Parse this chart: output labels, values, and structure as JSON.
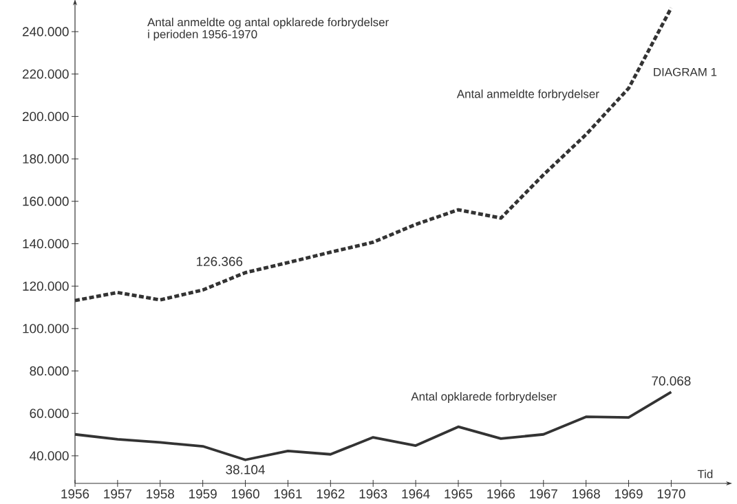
{
  "chart_data": {
    "type": "line",
    "title": "Antal anmeldte og antal opklarede forbrydelser",
    "subtitle": "i perioden 1956-1970",
    "xlabel": "Tid",
    "annotations": [
      "DIAGRAM 1"
    ],
    "categories": [
      "1956",
      "1957",
      "1958",
      "1959",
      "1960",
      "1961",
      "1962",
      "1963",
      "1964",
      "1965",
      "1966",
      "1967",
      "1968",
      "1969",
      "1970"
    ],
    "series": [
      {
        "name": "Antal anmeldte forbrydelser",
        "color": "#333333",
        "line_style": "dashed",
        "values": [
          113200,
          117000,
          113500,
          118200,
          126366,
          131100,
          136000,
          140700,
          149100,
          156000,
          152100,
          172500,
          191500,
          213300,
          251200
        ],
        "value_labels": [
          null,
          null,
          null,
          null,
          "126.366",
          null,
          null,
          null,
          null,
          null,
          null,
          null,
          null,
          null,
          null
        ]
      },
      {
        "name": "Antal opklarede forbrydelser",
        "color": "#333333",
        "line_style": "solid",
        "values": [
          50100,
          47800,
          46300,
          44500,
          38104,
          42300,
          40700,
          48700,
          44800,
          53700,
          48100,
          50100,
          58400,
          58100,
          70068
        ],
        "value_labels": [
          null,
          null,
          null,
          null,
          "38.104",
          null,
          null,
          null,
          null,
          null,
          null,
          null,
          null,
          null,
          "70.068"
        ]
      }
    ],
    "ylim": [
      27000,
      252000
    ],
    "yticks": [
      {
        "value": 40000,
        "label": "40.000"
      },
      {
        "value": 60000,
        "label": "60.000"
      },
      {
        "value": 80000,
        "label": "80.000"
      },
      {
        "value": 100000,
        "label": "100.000"
      },
      {
        "value": 120000,
        "label": "120.000"
      },
      {
        "value": 140000,
        "label": "140.000"
      },
      {
        "value": 160000,
        "label": "160.000"
      },
      {
        "value": 180000,
        "label": "180.000"
      },
      {
        "value": 200000,
        "label": "200.000"
      },
      {
        "value": 220000,
        "label": "220.000"
      },
      {
        "value": 240000,
        "label": "240.000"
      }
    ]
  }
}
